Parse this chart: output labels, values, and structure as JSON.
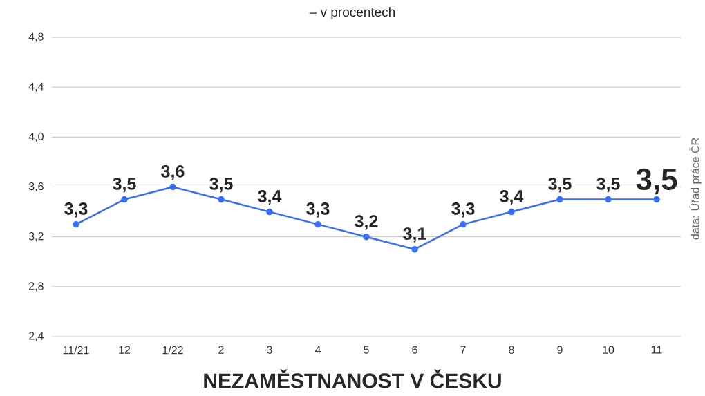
{
  "chart_data": {
    "type": "line",
    "title": "NEZAMĚSTNANOST V ČESKU",
    "subtitle": "– v procentech",
    "annotations": [
      "data: Úřad práce ČR"
    ],
    "categories": [
      "11/21",
      "12",
      "1/22",
      "2",
      "3",
      "4",
      "5",
      "6",
      "7",
      "8",
      "9",
      "10",
      "11"
    ],
    "values": [
      3.3,
      3.5,
      3.6,
      3.5,
      3.4,
      3.3,
      3.2,
      3.1,
      3.3,
      3.4,
      3.5,
      3.5,
      3.5
    ],
    "value_labels": [
      "3,3",
      "3,5",
      "3,6",
      "3,5",
      "3,4",
      "3,3",
      "3,2",
      "3,1",
      "3,3",
      "3,4",
      "3,5",
      "3,5",
      "3,5"
    ],
    "color": "#3b6ef6",
    "marker": "circle",
    "line_style": "solid",
    "grid": "y",
    "ylim": [
      2.4,
      4.8
    ],
    "yticks": [
      {
        "value": 2.4,
        "label": "2,4"
      },
      {
        "value": 2.8,
        "label": "2,8"
      },
      {
        "value": 3.2,
        "label": "3,2"
      },
      {
        "value": 3.6,
        "label": "3,6"
      },
      {
        "value": 4.0,
        "label": "4,0"
      },
      {
        "value": 4.4,
        "label": "4,4"
      },
      {
        "value": 4.8,
        "label": "4,8"
      }
    ]
  }
}
